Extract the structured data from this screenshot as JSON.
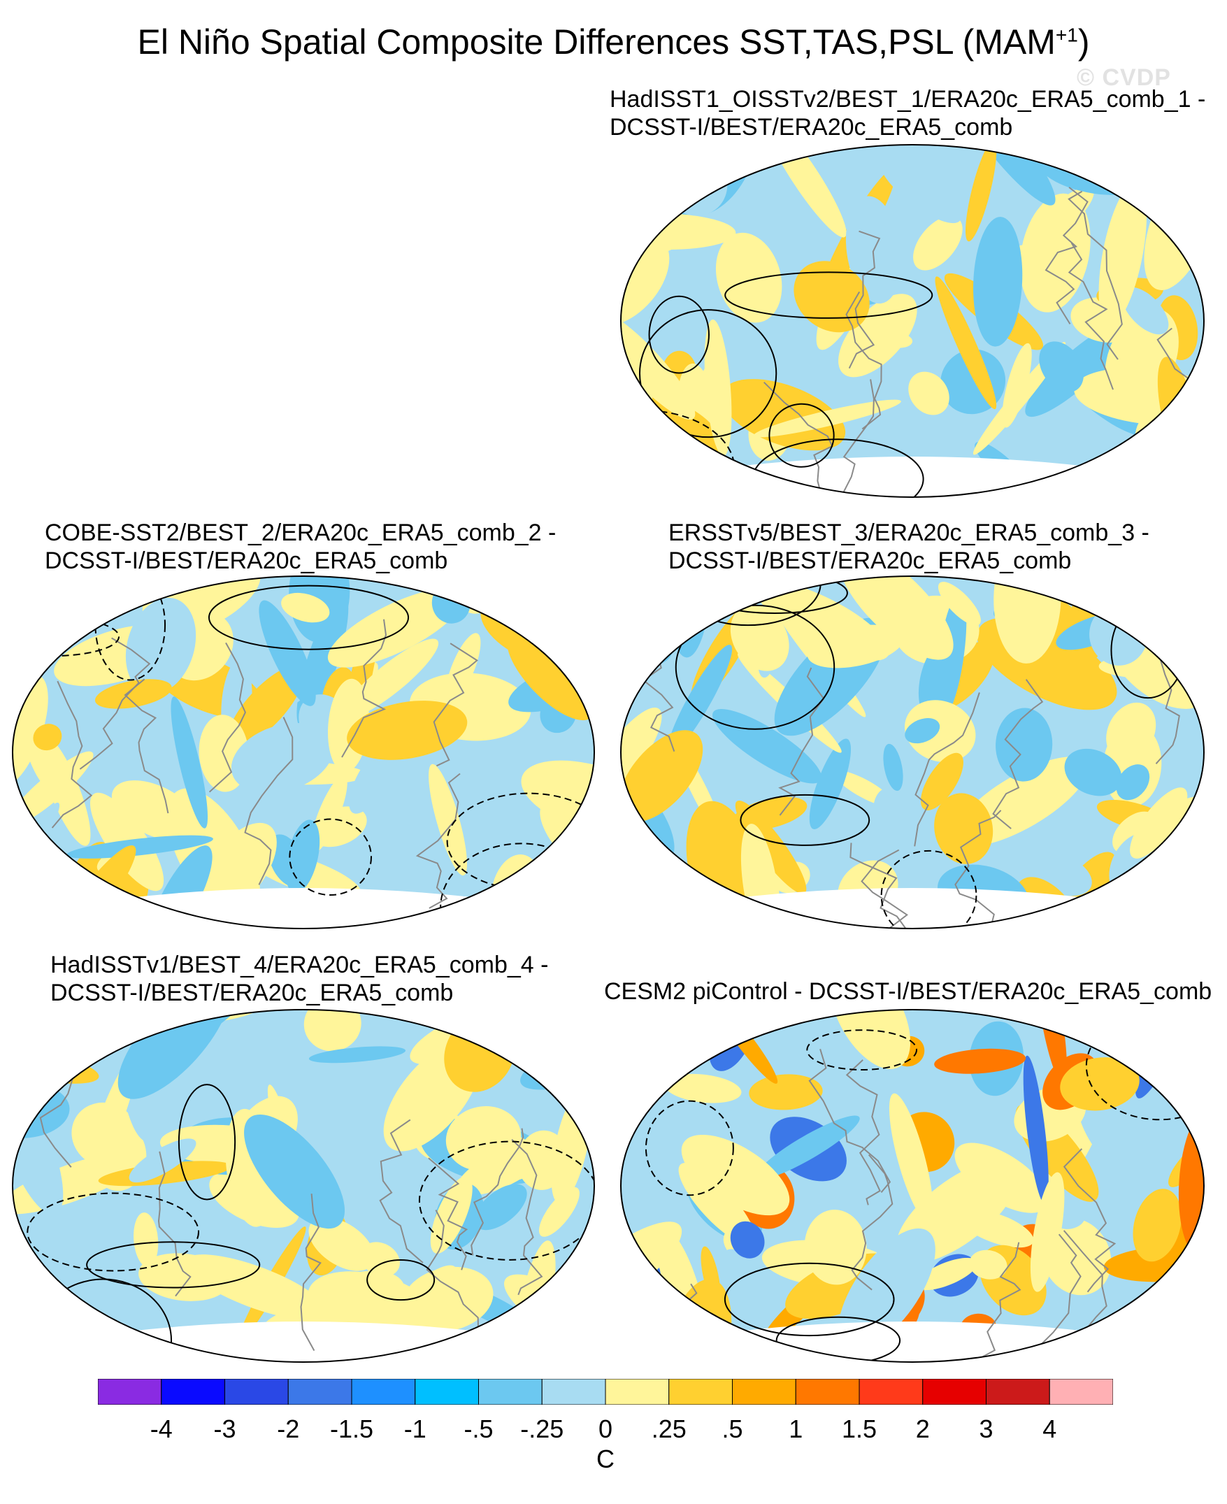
{
  "title": {
    "main": "El Niño Spatial Composite Differences SST,TAS,PSL (MAM",
    "sup": "+1",
    "close": ")"
  },
  "watermark": "© CVDP",
  "panels": [
    {
      "line1": "HadISST1_OISSTv2/BEST_1/ERA20c_ERA5_comb_1 -",
      "line2": "DCSST-I/BEST/ERA20c_ERA5_comb"
    },
    {
      "line1": "COBE-SST2/BEST_2/ERA20c_ERA5_comb_2 -",
      "line2": "DCSST-I/BEST/ERA20c_ERA5_comb"
    },
    {
      "line1": "ERSSTv5/BEST_3/ERA20c_ERA5_comb_3 -",
      "line2": "DCSST-I/BEST/ERA20c_ERA5_comb"
    },
    {
      "line1": "HadISSTv1/BEST_4/ERA20c_ERA5_comb_4 -",
      "line2": "DCSST-I/BEST/ERA20c_ERA5_comb"
    },
    {
      "line1": "CESM2 piControl - DCSST-I/BEST/ERA20c_ERA5_comb",
      "line2": ""
    }
  ],
  "colorbar": {
    "colors": [
      "#8a2be2",
      "#0a0aff",
      "#2a48e6",
      "#3c78e8",
      "#1e90ff",
      "#00bfff",
      "#6cc8f0",
      "#a8dcf2",
      "#fff59a",
      "#ffd030",
      "#ffaa00",
      "#ff7800",
      "#ff3a1a",
      "#e60000",
      "#cc1a1a",
      "#ffb0b4"
    ],
    "labels": [
      "-4",
      "-3",
      "-2",
      "-1.5",
      "-1",
      "-.5",
      "-.25",
      "0",
      ".25",
      ".5",
      "1",
      "1.5",
      "2",
      "3",
      "4"
    ],
    "unit": "C"
  }
}
